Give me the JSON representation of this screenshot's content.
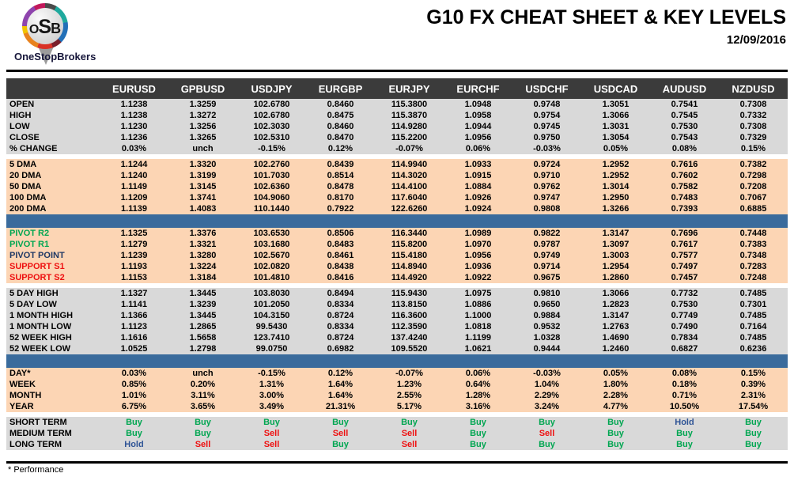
{
  "logo": {
    "letters": [
      "O",
      "S",
      "B"
    ],
    "brand": "OneStopBrokers"
  },
  "header": {
    "title": "G10 FX CHEAT SHEET & KEY LEVELS",
    "date": "12/09/2016"
  },
  "colors": {
    "header_bg": "#3b3b3b",
    "gray_section": "#d9d9d9",
    "peach_section": "#fcd5b4",
    "blue_divider": "#3a6b9c",
    "buy": "#00a651",
    "sell": "#ee1111",
    "hold": "#2f5496",
    "pivot_r": "#00a651",
    "pivot_point": "#1f3864",
    "support": "#ee1111"
  },
  "table": {
    "columns": [
      "EURUSD",
      "GPBUSD",
      "USDJPY",
      "EURGBP",
      "EURJPY",
      "EURCHF",
      "USDCHF",
      "USDCAD",
      "AUDUSD",
      "NZDUSD"
    ],
    "sections": [
      {
        "id": "ohlc",
        "bg": "gray",
        "divider_before": "none",
        "rows": [
          {
            "label": "OPEN",
            "values": [
              "1.1238",
              "1.3259",
              "102.6780",
              "0.8460",
              "115.3800",
              "1.0948",
              "0.9748",
              "1.3051",
              "0.7541",
              "0.7308"
            ]
          },
          {
            "label": "HIGH",
            "values": [
              "1.1238",
              "1.3272",
              "102.6780",
              "0.8475",
              "115.3870",
              "1.0958",
              "0.9754",
              "1.3066",
              "0.7545",
              "0.7332"
            ]
          },
          {
            "label": "LOW",
            "values": [
              "1.1230",
              "1.3256",
              "102.3030",
              "0.8460",
              "114.9280",
              "1.0944",
              "0.9745",
              "1.3031",
              "0.7530",
              "0.7308"
            ]
          },
          {
            "label": "CLOSE",
            "values": [
              "1.1236",
              "1.3265",
              "102.5310",
              "0.8470",
              "115.2200",
              "1.0956",
              "0.9750",
              "1.3054",
              "0.7543",
              "0.7329"
            ]
          },
          {
            "label": "% CHANGE",
            "values": [
              "0.03%",
              "unch",
              "-0.15%",
              "0.12%",
              "-0.07%",
              "0.06%",
              "-0.03%",
              "0.05%",
              "0.08%",
              "0.15%"
            ]
          }
        ]
      },
      {
        "id": "dma",
        "bg": "peach",
        "divider_before": "gap",
        "rows": [
          {
            "label": "5 DMA",
            "values": [
              "1.1244",
              "1.3320",
              "102.2760",
              "0.8439",
              "114.9940",
              "1.0933",
              "0.9724",
              "1.2952",
              "0.7616",
              "0.7382"
            ]
          },
          {
            "label": "20 DMA",
            "values": [
              "1.1240",
              "1.3199",
              "101.7030",
              "0.8514",
              "114.3020",
              "1.0915",
              "0.9710",
              "1.2952",
              "0.7602",
              "0.7298"
            ]
          },
          {
            "label": "50 DMA",
            "values": [
              "1.1149",
              "1.3145",
              "102.6360",
              "0.8478",
              "114.4100",
              "1.0884",
              "0.9762",
              "1.3014",
              "0.7582",
              "0.7208"
            ]
          },
          {
            "label": "100 DMA",
            "values": [
              "1.1209",
              "1.3741",
              "104.9060",
              "0.8170",
              "117.6040",
              "1.0926",
              "0.9747",
              "1.2950",
              "0.7483",
              "0.7067"
            ]
          },
          {
            "label": "200 DMA",
            "values": [
              "1.1139",
              "1.4083",
              "110.1440",
              "0.7922",
              "122.6260",
              "1.0924",
              "0.9808",
              "1.3266",
              "0.7393",
              "0.6885"
            ]
          }
        ]
      },
      {
        "id": "pivots",
        "bg": "peach",
        "divider_before": "blue",
        "rows": [
          {
            "label": "PIVOT R2",
            "label_color": "green",
            "values": [
              "1.1325",
              "1.3376",
              "103.6530",
              "0.8506",
              "116.3440",
              "1.0989",
              "0.9822",
              "1.3147",
              "0.7696",
              "0.7448"
            ]
          },
          {
            "label": "PIVOT R1",
            "label_color": "green",
            "values": [
              "1.1279",
              "1.3321",
              "103.1680",
              "0.8483",
              "115.8200",
              "1.0970",
              "0.9787",
              "1.3097",
              "0.7617",
              "0.7383"
            ]
          },
          {
            "label": "PIVOT POINT",
            "label_color": "navy",
            "values": [
              "1.1239",
              "1.3280",
              "102.5670",
              "0.8461",
              "115.4180",
              "1.0956",
              "0.9749",
              "1.3003",
              "0.7577",
              "0.7348"
            ]
          },
          {
            "label": "SUPPORT S1",
            "label_color": "red",
            "values": [
              "1.1193",
              "1.3224",
              "102.0820",
              "0.8438",
              "114.8940",
              "1.0936",
              "0.9714",
              "1.2954",
              "0.7497",
              "0.7283"
            ]
          },
          {
            "label": "SUPPORT S2",
            "label_color": "red",
            "values": [
              "1.1153",
              "1.3184",
              "101.4810",
              "0.8416",
              "114.4920",
              "1.0922",
              "0.9675",
              "1.2860",
              "0.7457",
              "0.7248"
            ]
          }
        ]
      },
      {
        "id": "ranges",
        "bg": "gray",
        "divider_before": "gap",
        "rows": [
          {
            "label": "5 DAY HIGH",
            "values": [
              "1.1327",
              "1.3445",
              "103.8030",
              "0.8494",
              "115.9430",
              "1.0975",
              "0.9810",
              "1.3066",
              "0.7732",
              "0.7485"
            ]
          },
          {
            "label": "5 DAY LOW",
            "values": [
              "1.1141",
              "1.3239",
              "101.2050",
              "0.8334",
              "113.8150",
              "1.0886",
              "0.9650",
              "1.2823",
              "0.7530",
              "0.7301"
            ]
          },
          {
            "label": "1 MONTH HIGH",
            "values": [
              "1.1366",
              "1.3445",
              "104.3150",
              "0.8724",
              "116.3600",
              "1.1000",
              "0.9884",
              "1.3147",
              "0.7749",
              "0.7485"
            ]
          },
          {
            "label": "1 MONTH LOW",
            "values": [
              "1.1123",
              "1.2865",
              "99.5430",
              "0.8334",
              "112.3590",
              "1.0818",
              "0.9532",
              "1.2763",
              "0.7490",
              "0.7164"
            ]
          },
          {
            "label": "52 WEEK HIGH",
            "values": [
              "1.1616",
              "1.5658",
              "123.7410",
              "0.8724",
              "137.4240",
              "1.1199",
              "1.0328",
              "1.4690",
              "0.7834",
              "0.7485"
            ]
          },
          {
            "label": "52 WEEK LOW",
            "values": [
              "1.0525",
              "1.2798",
              "99.0750",
              "0.6982",
              "109.5520",
              "1.0621",
              "0.9444",
              "1.2460",
              "0.6827",
              "0.6236"
            ]
          }
        ]
      },
      {
        "id": "performance",
        "bg": "peach",
        "divider_before": "blue",
        "rows": [
          {
            "label": "DAY*",
            "values": [
              "0.03%",
              "unch",
              "-0.15%",
              "0.12%",
              "-0.07%",
              "0.06%",
              "-0.03%",
              "0.05%",
              "0.08%",
              "0.15%"
            ]
          },
          {
            "label": "WEEK",
            "values": [
              "0.85%",
              "0.20%",
              "1.31%",
              "1.64%",
              "1.23%",
              "0.64%",
              "1.04%",
              "1.80%",
              "0.18%",
              "0.39%"
            ]
          },
          {
            "label": "MONTH",
            "values": [
              "1.01%",
              "3.11%",
              "3.00%",
              "1.64%",
              "2.55%",
              "1.28%",
              "2.29%",
              "2.28%",
              "0.71%",
              "2.31%"
            ]
          },
          {
            "label": "YEAR",
            "values": [
              "6.75%",
              "3.65%",
              "3.49%",
              "21.31%",
              "5.17%",
              "3.16%",
              "3.24%",
              "4.77%",
              "10.50%",
              "17.54%"
            ]
          }
        ]
      },
      {
        "id": "signals",
        "bg": "gray",
        "divider_before": "gap",
        "rows": [
          {
            "label": "SHORT TERM",
            "values": [
              "Buy",
              "Buy",
              "Buy",
              "Buy",
              "Buy",
              "Buy",
              "Buy",
              "Buy",
              "Hold",
              "Buy"
            ]
          },
          {
            "label": "MEDIUM TERM",
            "values": [
              "Buy",
              "Buy",
              "Sell",
              "Sell",
              "Sell",
              "Buy",
              "Sell",
              "Buy",
              "Buy",
              "Buy"
            ]
          },
          {
            "label": "LONG TERM",
            "values": [
              "Hold",
              "Sell",
              "Sell",
              "Buy",
              "Sell",
              "Buy",
              "Buy",
              "Buy",
              "Buy",
              "Buy"
            ]
          }
        ]
      }
    ]
  },
  "footer": {
    "note": "* Performance"
  }
}
